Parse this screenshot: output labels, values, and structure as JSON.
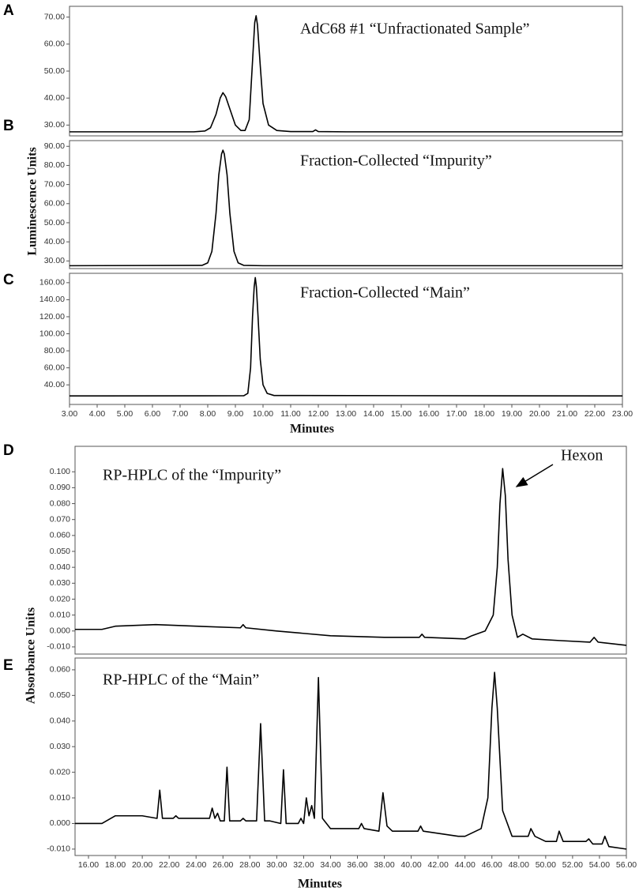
{
  "chart_data": [
    {
      "type": "line",
      "panel": "A",
      "annotation": "AdC68 #1 “Unfractionated Sample”",
      "color": "#000000",
      "xlim": [
        3,
        23
      ],
      "ylim": [
        26,
        74
      ],
      "yticks": [
        {
          "value": 30,
          "label": "30.00"
        },
        {
          "value": 40,
          "label": "40.00"
        },
        {
          "value": 50,
          "label": "50.00"
        },
        {
          "value": 60,
          "label": "60.00"
        },
        {
          "value": 70,
          "label": "70.00"
        }
      ],
      "x": [
        3,
        7.5,
        7.9,
        8.1,
        8.3,
        8.45,
        8.55,
        8.65,
        8.8,
        9.0,
        9.2,
        9.35,
        9.5,
        9.6,
        9.7,
        9.75,
        9.8,
        9.9,
        10.0,
        10.2,
        10.5,
        11,
        11.8,
        11.9,
        12.0,
        13,
        23
      ],
      "values": [
        27.5,
        27.5,
        27.8,
        29,
        34,
        40,
        42,
        40.5,
        36,
        30,
        28,
        28,
        32,
        50,
        68,
        70.5,
        67,
        52,
        38,
        30,
        28,
        27.6,
        27.6,
        28.2,
        27.6,
        27.5,
        27.5
      ]
    },
    {
      "type": "line",
      "panel": "B",
      "annotation": "Fraction-Collected “Impurity”",
      "ylabel": "Luminescence Units",
      "color": "#000000",
      "xlim": [
        3,
        23
      ],
      "ylim": [
        26,
        93
      ],
      "yticks": [
        {
          "value": 30,
          "label": "30.00"
        },
        {
          "value": 40,
          "label": "40.00"
        },
        {
          "value": 50,
          "label": "50.00"
        },
        {
          "value": 60,
          "label": "60.00"
        },
        {
          "value": 70,
          "label": "70.00"
        },
        {
          "value": 80,
          "label": "80.00"
        },
        {
          "value": 90,
          "label": "90.00"
        }
      ],
      "x": [
        3,
        7.8,
        8.0,
        8.15,
        8.3,
        8.4,
        8.5,
        8.55,
        8.6,
        8.7,
        8.8,
        8.95,
        9.1,
        9.3,
        10,
        23
      ],
      "values": [
        27.5,
        27.7,
        29,
        35,
        55,
        75,
        86,
        88,
        86,
        75,
        55,
        35,
        29,
        27.7,
        27.5,
        27.5
      ]
    },
    {
      "type": "line",
      "panel": "C",
      "annotation": "Fraction-Collected “Main”",
      "xlabel": "Minutes",
      "color": "#000000",
      "xlim": [
        3,
        23
      ],
      "ylim": [
        17,
        171
      ],
      "xticks": [
        {
          "value": 3,
          "label": "3.00"
        },
        {
          "value": 4,
          "label": "4.00"
        },
        {
          "value": 5,
          "label": "5.00"
        },
        {
          "value": 6,
          "label": "6.00"
        },
        {
          "value": 7,
          "label": "7.00"
        },
        {
          "value": 8,
          "label": "8.00"
        },
        {
          "value": 9,
          "label": "9.00"
        },
        {
          "value": 10,
          "label": "10.00"
        },
        {
          "value": 11,
          "label": "11.00"
        },
        {
          "value": 12,
          "label": "12.00"
        },
        {
          "value": 13,
          "label": "13.00"
        },
        {
          "value": 14,
          "label": "14.00"
        },
        {
          "value": 15,
          "label": "15.00"
        },
        {
          "value": 16,
          "label": "16.00"
        },
        {
          "value": 17,
          "label": "17.00"
        },
        {
          "value": 18,
          "label": "18.00"
        },
        {
          "value": 19,
          "label": "19.00"
        },
        {
          "value": 20,
          "label": "20.00"
        },
        {
          "value": 21,
          "label": "21.00"
        },
        {
          "value": 22,
          "label": "22.00"
        },
        {
          "value": 23,
          "label": "23.00"
        }
      ],
      "yticks": [
        {
          "value": 40,
          "label": "40.00"
        },
        {
          "value": 60,
          "label": "60.00"
        },
        {
          "value": 80,
          "label": "80.00"
        },
        {
          "value": 100,
          "label": "100.00"
        },
        {
          "value": 120,
          "label": "120.00"
        },
        {
          "value": 140,
          "label": "140.00"
        },
        {
          "value": 160,
          "label": "160.00"
        }
      ],
      "x": [
        3,
        9.3,
        9.45,
        9.55,
        9.62,
        9.68,
        9.72,
        9.76,
        9.82,
        9.9,
        10.0,
        10.15,
        10.4,
        23
      ],
      "values": [
        27,
        27.2,
        30,
        60,
        120,
        155,
        166,
        155,
        120,
        70,
        40,
        30,
        27.5,
        27
      ]
    },
    {
      "type": "line",
      "panel": "D",
      "annotation": "RP-HPLC of the “Impurity”",
      "callout": "Hexon",
      "ylabel": "Absorbance Units",
      "color": "#000000",
      "xlim": [
        15,
        56
      ],
      "ylim": [
        -0.0145,
        0.116
      ],
      "yticks": [
        {
          "value": -0.01,
          "label": "-0.010"
        },
        {
          "value": 0,
          "label": "0.000"
        },
        {
          "value": 0.01,
          "label": "0.010"
        },
        {
          "value": 0.02,
          "label": "0.020"
        },
        {
          "value": 0.03,
          "label": "0.030"
        },
        {
          "value": 0.04,
          "label": "0.040"
        },
        {
          "value": 0.05,
          "label": "0.050"
        },
        {
          "value": 0.06,
          "label": "0.060"
        },
        {
          "value": 0.07,
          "label": "0.070"
        },
        {
          "value": 0.08,
          "label": "0.080"
        },
        {
          "value": 0.09,
          "label": "0.090"
        },
        {
          "value": 0.1,
          "label": "0.100"
        }
      ],
      "x": [
        15,
        17,
        18,
        21,
        24,
        27.3,
        27.5,
        27.7,
        30,
        34,
        38,
        40.6,
        40.8,
        41,
        44,
        44.5,
        45.5,
        46.1,
        46.4,
        46.6,
        46.8,
        47.0,
        47.2,
        47.5,
        47.9,
        48.3,
        49,
        51,
        53.3,
        53.6,
        53.9,
        56
      ],
      "values": [
        0.001,
        0.001,
        0.003,
        0.004,
        0.003,
        0.002,
        0.004,
        0.002,
        0.0,
        -0.003,
        -0.004,
        -0.004,
        -0.002,
        -0.004,
        -0.005,
        -0.003,
        0.0,
        0.01,
        0.04,
        0.08,
        0.102,
        0.085,
        0.045,
        0.01,
        -0.004,
        -0.002,
        -0.005,
        -0.006,
        -0.007,
        -0.004,
        -0.007,
        -0.009
      ]
    },
    {
      "type": "line",
      "panel": "E",
      "annotation": "RP-HPLC of the “Main”",
      "xlabel": "Minutes",
      "color": "#000000",
      "xlim": [
        15,
        56
      ],
      "ylim": [
        -0.0125,
        0.0646
      ],
      "xticks": [
        {
          "value": 16,
          "label": "16.00"
        },
        {
          "value": 18,
          "label": "18.00"
        },
        {
          "value": 20,
          "label": "20.00"
        },
        {
          "value": 22,
          "label": "22.00"
        },
        {
          "value": 24,
          "label": "24.00"
        },
        {
          "value": 26,
          "label": "26.00"
        },
        {
          "value": 28,
          "label": "28.00"
        },
        {
          "value": 30,
          "label": "30.00"
        },
        {
          "value": 32,
          "label": "32.00"
        },
        {
          "value": 34,
          "label": "34.00"
        },
        {
          "value": 36,
          "label": "36.00"
        },
        {
          "value": 38,
          "label": "38.00"
        },
        {
          "value": 40,
          "label": "40.00"
        },
        {
          "value": 42,
          "label": "42.00"
        },
        {
          "value": 44,
          "label": "44.00"
        },
        {
          "value": 46,
          "label": "46.00"
        },
        {
          "value": 48,
          "label": "48.00"
        },
        {
          "value": 50,
          "label": "50.00"
        },
        {
          "value": 52,
          "label": "52.00"
        },
        {
          "value": 54,
          "label": "54.00"
        },
        {
          "value": 56,
          "label": "56.00"
        }
      ],
      "yticks": [
        {
          "value": -0.01,
          "label": "-0.010"
        },
        {
          "value": 0,
          "label": "0.000"
        },
        {
          "value": 0.01,
          "label": "0.010"
        },
        {
          "value": 0.02,
          "label": "0.020"
        },
        {
          "value": 0.03,
          "label": "0.030"
        },
        {
          "value": 0.04,
          "label": "0.040"
        },
        {
          "value": 0.05,
          "label": "0.050"
        },
        {
          "value": 0.06,
          "label": "0.060"
        }
      ],
      "x": [
        15,
        17,
        18,
        20,
        21.1,
        21.3,
        21.5,
        22.3,
        22.5,
        22.7,
        25.0,
        25.2,
        25.4,
        25.6,
        25.8,
        26.1,
        26.3,
        26.5,
        27.3,
        27.5,
        27.7,
        28.5,
        28.8,
        29.1,
        29.5,
        30.3,
        30.5,
        30.7,
        31.6,
        31.8,
        32.0,
        32.2,
        32.4,
        32.6,
        32.8,
        33.1,
        33.4,
        34,
        36.1,
        36.3,
        36.5,
        37.6,
        37.9,
        38.2,
        38.6,
        40.5,
        40.7,
        40.9,
        43.5,
        44,
        45.2,
        45.7,
        46.0,
        46.2,
        46.4,
        46.8,
        47.5,
        48.7,
        48.9,
        49.2,
        50,
        50.8,
        51,
        51.3,
        53,
        53.2,
        53.5,
        54.2,
        54.4,
        54.7,
        56
      ],
      "values": [
        0.0,
        0.0,
        0.003,
        0.003,
        0.002,
        0.013,
        0.002,
        0.002,
        0.003,
        0.002,
        0.002,
        0.006,
        0.002,
        0.004,
        0.001,
        0.001,
        0.022,
        0.001,
        0.001,
        0.002,
        0.001,
        0.001,
        0.039,
        0.001,
        0.001,
        0.0,
        0.021,
        0.0,
        0.0,
        0.002,
        0.0,
        0.01,
        0.003,
        0.007,
        0.002,
        0.057,
        0.002,
        -0.002,
        -0.002,
        0.0,
        -0.002,
        -0.003,
        0.012,
        -0.001,
        -0.003,
        -0.003,
        -0.001,
        -0.003,
        -0.005,
        -0.005,
        -0.002,
        0.01,
        0.045,
        0.059,
        0.045,
        0.005,
        -0.005,
        -0.005,
        -0.002,
        -0.005,
        -0.007,
        -0.007,
        -0.003,
        -0.007,
        -0.007,
        -0.006,
        -0.008,
        -0.008,
        -0.005,
        -0.009,
        -0.01
      ]
    }
  ]
}
